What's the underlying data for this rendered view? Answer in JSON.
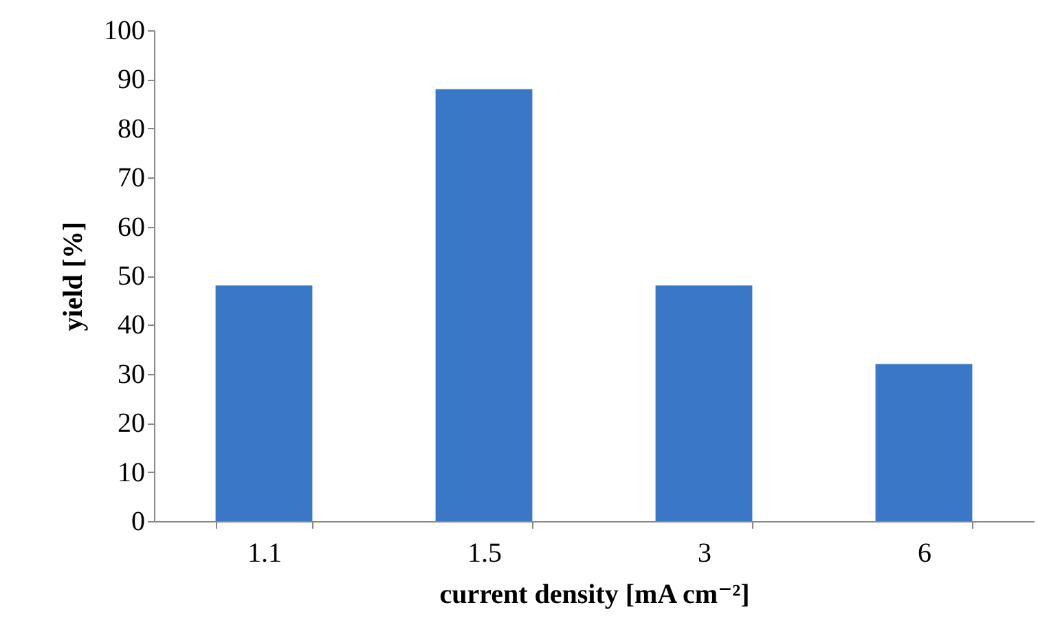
{
  "chart_data": {
    "type": "bar",
    "xlabel": "current density [mA cm⁻²]",
    "ylabel": "yield [%]",
    "categories": [
      "1.1",
      "1.5",
      "3",
      "6"
    ],
    "values": [
      48,
      88,
      48,
      32
    ],
    "color": "#3a77c6",
    "ylim": [
      0,
      100
    ],
    "yticks": [
      0,
      10,
      20,
      30,
      40,
      50,
      60,
      70,
      80,
      90,
      100
    ]
  }
}
